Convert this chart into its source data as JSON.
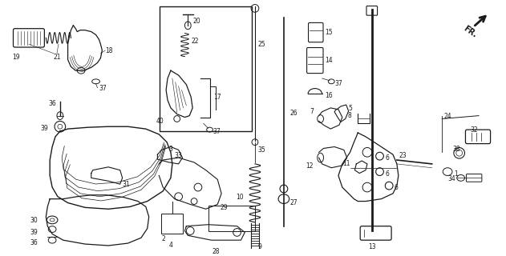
{
  "bg_color": "#ffffff",
  "line_color": "#1a1a1a",
  "fig_width": 6.31,
  "fig_height": 3.2,
  "dpi": 100
}
